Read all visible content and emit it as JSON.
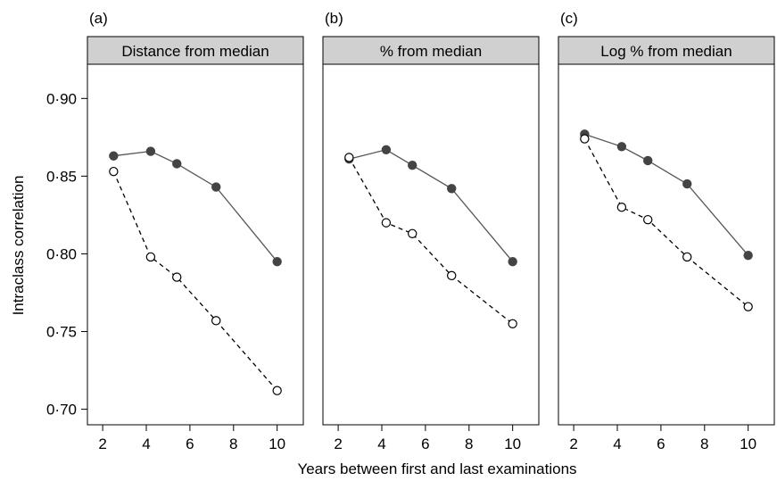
{
  "figure": {
    "ylabel": "Intraclass correlation",
    "xlabel": "Years between first and last examinations"
  },
  "chart_data": [
    {
      "type": "line",
      "panel_label": "(a)",
      "strip_title": "Distance from median",
      "x": [
        2.5,
        4.2,
        5.4,
        7.2,
        10
      ],
      "series": [
        {
          "style": "solid-filled",
          "values": [
            0.863,
            0.866,
            0.858,
            0.843,
            0.795
          ]
        },
        {
          "style": "dashed-open",
          "values": [
            0.853,
            0.798,
            0.785,
            0.757,
            0.712
          ]
        }
      ],
      "xticks": [
        "2",
        "4",
        "6",
        "8",
        "10"
      ],
      "yticks": [
        "0·70",
        "0·75",
        "0·80",
        "0·85",
        "0·90"
      ],
      "xlim": [
        1.3,
        11.2
      ],
      "ylim": [
        0.69,
        0.922
      ]
    },
    {
      "type": "line",
      "panel_label": "(b)",
      "strip_title": "% from median",
      "x": [
        2.5,
        4.2,
        5.4,
        7.2,
        10
      ],
      "series": [
        {
          "style": "solid-filled",
          "values": [
            0.861,
            0.867,
            0.857,
            0.842,
            0.795
          ]
        },
        {
          "style": "dashed-open",
          "values": [
            0.862,
            0.82,
            0.813,
            0.786,
            0.755
          ]
        }
      ],
      "xticks": [
        "2",
        "4",
        "6",
        "8",
        "10"
      ],
      "xlim": [
        1.3,
        11.2
      ],
      "ylim": [
        0.69,
        0.922
      ]
    },
    {
      "type": "line",
      "panel_label": "(c)",
      "strip_title": "Log % from median",
      "x": [
        2.5,
        4.2,
        5.4,
        7.2,
        10
      ],
      "series": [
        {
          "style": "solid-filled",
          "values": [
            0.877,
            0.869,
            0.86,
            0.845,
            0.799
          ]
        },
        {
          "style": "dashed-open",
          "values": [
            0.874,
            0.83,
            0.822,
            0.798,
            0.766
          ]
        }
      ],
      "xticks": [
        "2",
        "4",
        "6",
        "8",
        "10"
      ],
      "xlim": [
        1.3,
        11.2
      ],
      "ylim": [
        0.69,
        0.922
      ]
    }
  ]
}
